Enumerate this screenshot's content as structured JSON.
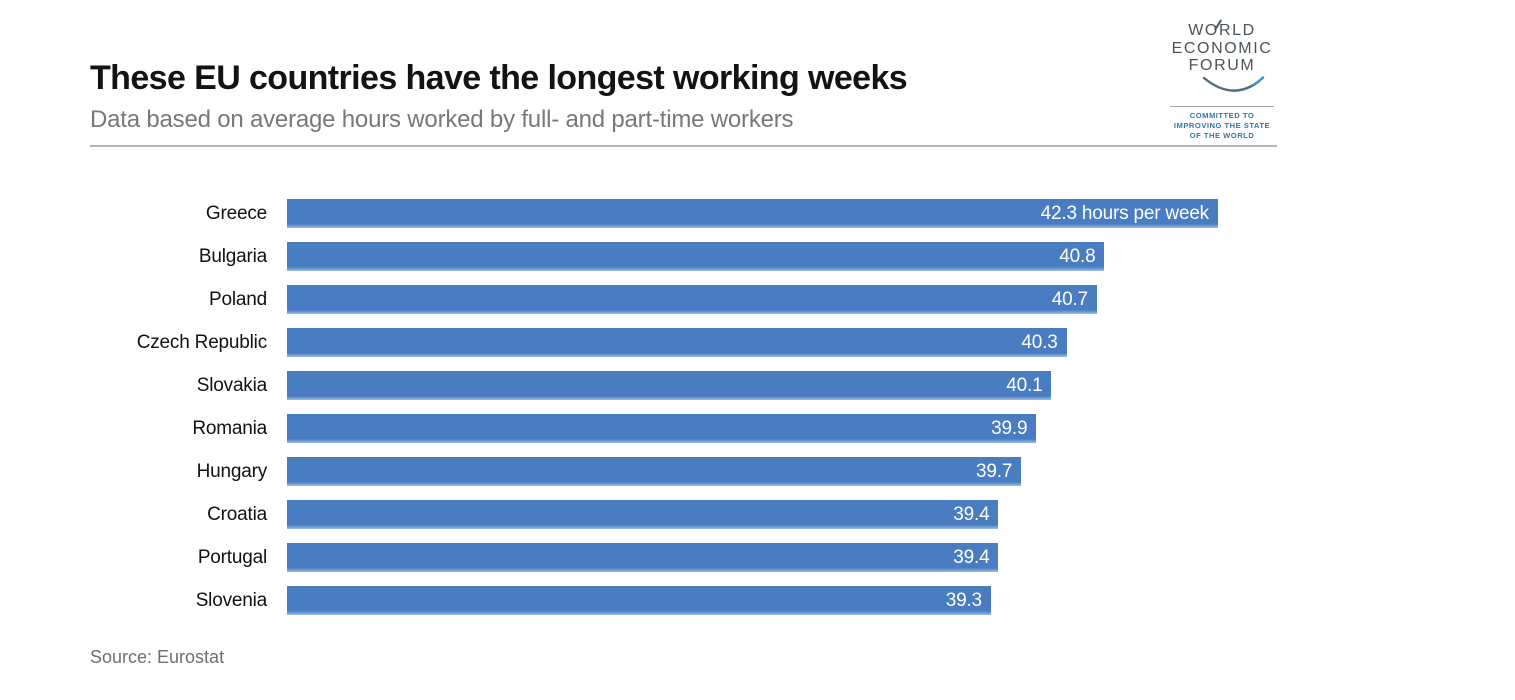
{
  "logo": {
    "lines": [
      "WORLD",
      "ECONOMIC",
      "FORUM"
    ],
    "tagline_lines": [
      "COMMITTED TO",
      "IMPROVING THE STATE",
      "OF THE WORLD"
    ],
    "text_color": "#4b545a",
    "tagline_color": "#2f76a5"
  },
  "chart_data": {
    "type": "bar",
    "orientation": "horizontal",
    "title": "These EU countries have the longest working weeks",
    "subtitle": "Data based on average hours worked by full- and part-time workers",
    "categories": [
      "Greece",
      "Bulgaria",
      "Poland",
      "Czech Republic",
      "Slovakia",
      "Romania",
      "Hungary",
      "Croatia",
      "Portugal",
      "Slovenia"
    ],
    "values": [
      42.3,
      40.8,
      40.7,
      40.3,
      40.1,
      39.9,
      39.7,
      39.4,
      39.4,
      39.3
    ],
    "value_labels": [
      "42.3 hours per week",
      "40.8",
      "40.7",
      "40.3",
      "40.1",
      "39.9",
      "39.7",
      "39.4",
      "39.4",
      "39.3"
    ],
    "unit": "hours per week",
    "xlim": [
      30,
      42.3
    ],
    "grid": false,
    "legend": false,
    "bar_color": "#4a7cc2",
    "bar_bottom_edge_color": "#9dbfe4",
    "value_label_color": "#ffffff",
    "source": "Source: Eurostat"
  }
}
